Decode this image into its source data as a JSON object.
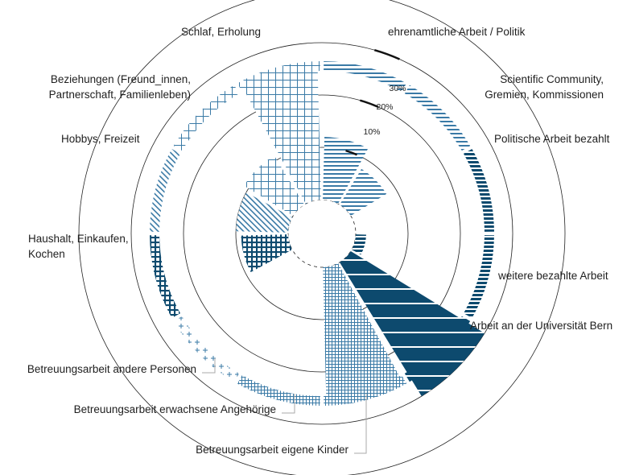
{
  "chart_data": {
    "type": "polar-bar",
    "title": "",
    "radial_ticks": [
      "10%",
      "20%",
      "30%"
    ],
    "radial_tick_values": [
      10,
      20,
      30
    ],
    "rmax": 40,
    "grid": true,
    "dark_color": "#0d4a6e",
    "light_color": "#3a7aa6",
    "categories": [
      {
        "id": "ehrenamtlich",
        "label": [
          "ehrenamtliche Arbeit / Politik"
        ],
        "inner": 0,
        "outer": 12,
        "pattern": "h-light"
      },
      {
        "id": "scientific",
        "label": [
          "Scientific Community,",
          "Gremien, Kommissionen"
        ],
        "inner": 0,
        "outer": 8,
        "pattern": "h-light"
      },
      {
        "id": "politisch",
        "label": [
          "Politische Arbeit bezahlt"
        ],
        "inner": 0,
        "outer": 0,
        "pattern": "h-dark"
      },
      {
        "id": "weitere",
        "label": [
          "weitere bezahlte Arbeit"
        ],
        "inner": 0,
        "outer": 2,
        "pattern": "h-dark"
      },
      {
        "id": "uni",
        "label": [
          "Arbeit an der Universität Bern"
        ],
        "inner": 0,
        "outer": 30,
        "pattern": "h-dark-wide"
      },
      {
        "id": "kinder",
        "label": [
          "Betreuungsarbeit eigene Kinder"
        ],
        "inner": 0,
        "outer": 26,
        "pattern": "grid-fine"
      },
      {
        "id": "erwachsene",
        "label": [
          "Betreuungsarbeit erwachsene Angehörige"
        ],
        "inner": 0,
        "outer": 0,
        "pattern": "grid-fine"
      },
      {
        "id": "andere",
        "label": [
          "Betreuungsarbeit andere Personen"
        ],
        "inner": 0,
        "outer": 0,
        "pattern": "plus"
      },
      {
        "id": "haushalt",
        "label": [
          "Haushalt, Einkaufen,",
          "Kochen"
        ],
        "inner": 0,
        "outer": 9,
        "pattern": "grid-dark"
      },
      {
        "id": "hobbys",
        "label": [
          "Hobbys, Freizeit"
        ],
        "inner": 0,
        "outer": 10,
        "pattern": "diag"
      },
      {
        "id": "beziehungen",
        "label": [
          "Beziehungen (Freund_innen,",
          "Partnerschaft, Familienleben)"
        ],
        "inner": 0,
        "outer": 11,
        "pattern": "grid-light"
      },
      {
        "id": "schlaf",
        "label": [
          "Schlaf, Erholung"
        ],
        "inner": 0,
        "outer": 25,
        "pattern": "grid-light"
      }
    ]
  }
}
